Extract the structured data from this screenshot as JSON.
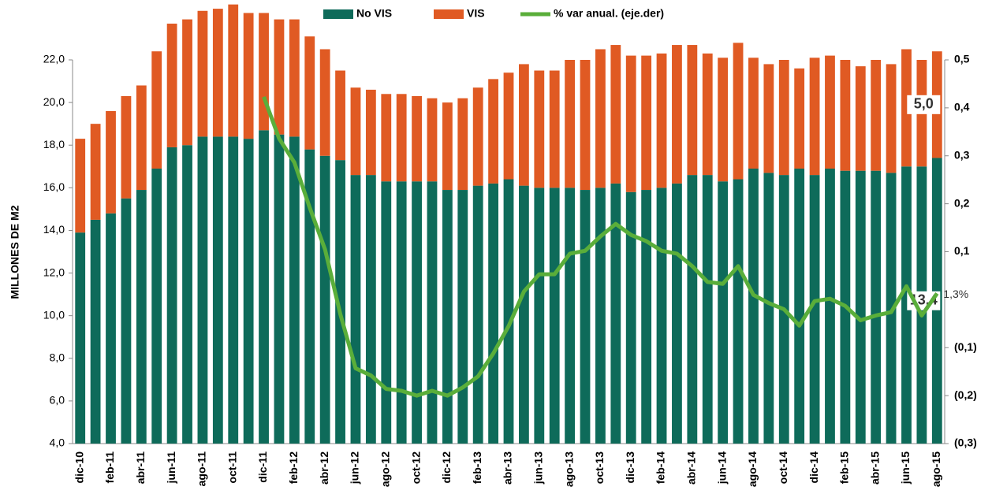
{
  "chart_data": {
    "type": "bar",
    "stacked": true,
    "y_label": "MILLONES DE M2",
    "categories": [
      "dic-10",
      null,
      "feb-11",
      null,
      "abr-11",
      null,
      "jun-11",
      null,
      "ago-11",
      null,
      "oct-11",
      null,
      "dic-11",
      null,
      "feb-12",
      null,
      "abr-12",
      null,
      "jun-12",
      null,
      "ago-12",
      null,
      "oct-12",
      null,
      "dic-12",
      null,
      "feb-13",
      null,
      "abr-13",
      null,
      "jun-13",
      null,
      "ago-13",
      null,
      "oct-13",
      null,
      "dic-13",
      null,
      "feb-14",
      null,
      "abr-14",
      null,
      "jun-14",
      null,
      "ago-14",
      null,
      "oct-14",
      null,
      "dic-14",
      null,
      "feb-15",
      null,
      "abr-15",
      null,
      "jun-15",
      null,
      "ago-15"
    ],
    "series": [
      {
        "name": "No VIS",
        "type": "bar",
        "color": "#0e6b5a",
        "values": [
          9.9,
          10.5,
          10.8,
          11.5,
          11.9,
          12.9,
          13.9,
          14.0,
          14.4,
          14.4,
          14.4,
          14.3,
          14.7,
          14.5,
          14.4,
          13.8,
          13.5,
          13.3,
          12.6,
          12.6,
          12.3,
          12.3,
          12.3,
          12.3,
          11.9,
          11.9,
          12.1,
          12.2,
          12.4,
          12.1,
          12.0,
          12.0,
          12.0,
          11.9,
          12.0,
          12.2,
          11.8,
          11.9,
          12.0,
          12.2,
          12.6,
          12.6,
          12.3,
          12.4,
          12.9,
          12.7,
          12.6,
          12.9,
          12.6,
          12.9,
          12.8,
          12.8,
          12.8,
          12.7,
          13.0,
          13.0,
          13.4
        ],
        "value_labels": {
          "56": "13,4"
        }
      },
      {
        "name": "VIS",
        "type": "bar",
        "color": "#e05a23",
        "values": [
          4.4,
          4.5,
          4.8,
          4.8,
          4.9,
          5.5,
          5.8,
          5.9,
          5.9,
          6.0,
          6.2,
          5.9,
          5.5,
          5.4,
          5.5,
          5.3,
          5.0,
          4.2,
          4.1,
          4.0,
          4.1,
          4.1,
          4.0,
          3.9,
          4.1,
          4.3,
          4.6,
          4.9,
          5.0,
          5.7,
          5.5,
          5.5,
          6.0,
          6.1,
          6.5,
          6.5,
          6.4,
          6.3,
          6.3,
          6.5,
          6.1,
          5.7,
          5.8,
          6.4,
          5.2,
          5.1,
          5.4,
          4.7,
          5.5,
          5.3,
          5.2,
          4.9,
          5.2,
          5.1,
          5.5,
          5.0,
          5.0
        ],
        "value_labels": {
          "56": "5,0"
        }
      },
      {
        "name": "% var anual. (eje.der)",
        "type": "line",
        "axis": "y2",
        "color": "#5aae3a",
        "values": [
          null,
          null,
          null,
          null,
          null,
          null,
          null,
          null,
          null,
          null,
          null,
          null,
          0.423,
          0.336,
          0.286,
          0.192,
          0.105,
          -0.03,
          -0.143,
          -0.158,
          -0.186,
          -0.19,
          -0.2,
          -0.19,
          -0.2,
          -0.183,
          -0.16,
          -0.112,
          -0.055,
          0.017,
          0.053,
          0.053,
          0.096,
          0.102,
          0.132,
          0.158,
          0.135,
          0.122,
          0.102,
          0.096,
          0.07,
          0.037,
          0.033,
          0.07,
          0.01,
          -0.007,
          -0.02,
          -0.054,
          -0.003,
          0.002,
          -0.013,
          -0.043,
          -0.033,
          -0.026,
          0.028,
          -0.033,
          0.013
        ],
        "value_labels": {
          "56": "1,3%"
        }
      }
    ],
    "ylim": [
      4,
      22
    ],
    "yticks": [
      {
        "value": 4,
        "label": "4,0"
      },
      {
        "value": 6,
        "label": "6,0"
      },
      {
        "value": 8,
        "label": "8,0"
      },
      {
        "value": 10,
        "label": "10,0"
      },
      {
        "value": 12,
        "label": "12,0"
      },
      {
        "value": 14,
        "label": "14,0"
      },
      {
        "value": 16,
        "label": "16,0"
      },
      {
        "value": 18,
        "label": "18,0"
      },
      {
        "value": 20,
        "label": "20,0"
      },
      {
        "value": 22,
        "label": "22,0"
      }
    ],
    "y2lim": [
      -0.3,
      0.5
    ],
    "y2ticks": [
      {
        "value": -0.3,
        "label": "(0,3)"
      },
      {
        "value": -0.2,
        "label": "(0,2)"
      },
      {
        "value": -0.1,
        "label": "(0,1)"
      },
      {
        "value": 0.1,
        "label": "0,1"
      },
      {
        "value": 0.2,
        "label": "0,2"
      },
      {
        "value": 0.3,
        "label": "0,3"
      },
      {
        "value": 0.4,
        "label": "0,4"
      },
      {
        "value": 0.5,
        "label": "0,5"
      }
    ],
    "grid": false,
    "legend": "top"
  }
}
